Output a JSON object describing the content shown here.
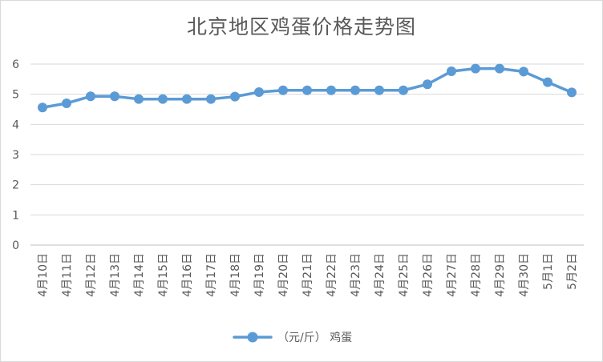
{
  "chart_data": {
    "type": "line",
    "title": "北京地区鸡蛋价格走势图",
    "xlabel": "",
    "ylabel": "",
    "ylim": [
      0,
      6
    ],
    "yticks": [
      "0",
      "1",
      "2",
      "3",
      "4",
      "5",
      "6"
    ],
    "grid": true,
    "legend_position": "bottom",
    "categories": [
      "4月10日",
      "4月11日",
      "4月12日",
      "4月13日",
      "4月14日",
      "4月15日",
      "4月16日",
      "4月17日",
      "4月18日",
      "4月19日",
      "4月20日",
      "4月21日",
      "4月22日",
      "4月23日",
      "4月24日",
      "4月25日",
      "4月26日",
      "4月27日",
      "4月28日",
      "4月29日",
      "4月30日",
      "5月1日",
      "5月2日"
    ],
    "series": [
      {
        "name": "（元/斤） 鸡蛋",
        "color": "#5b9bd5",
        "values": [
          4.56,
          4.7,
          4.93,
          4.93,
          4.84,
          4.84,
          4.84,
          4.84,
          4.92,
          5.07,
          5.13,
          5.13,
          5.13,
          5.13,
          5.13,
          5.13,
          5.33,
          5.76,
          5.85,
          5.85,
          5.75,
          5.4,
          5.06
        ]
      }
    ]
  }
}
